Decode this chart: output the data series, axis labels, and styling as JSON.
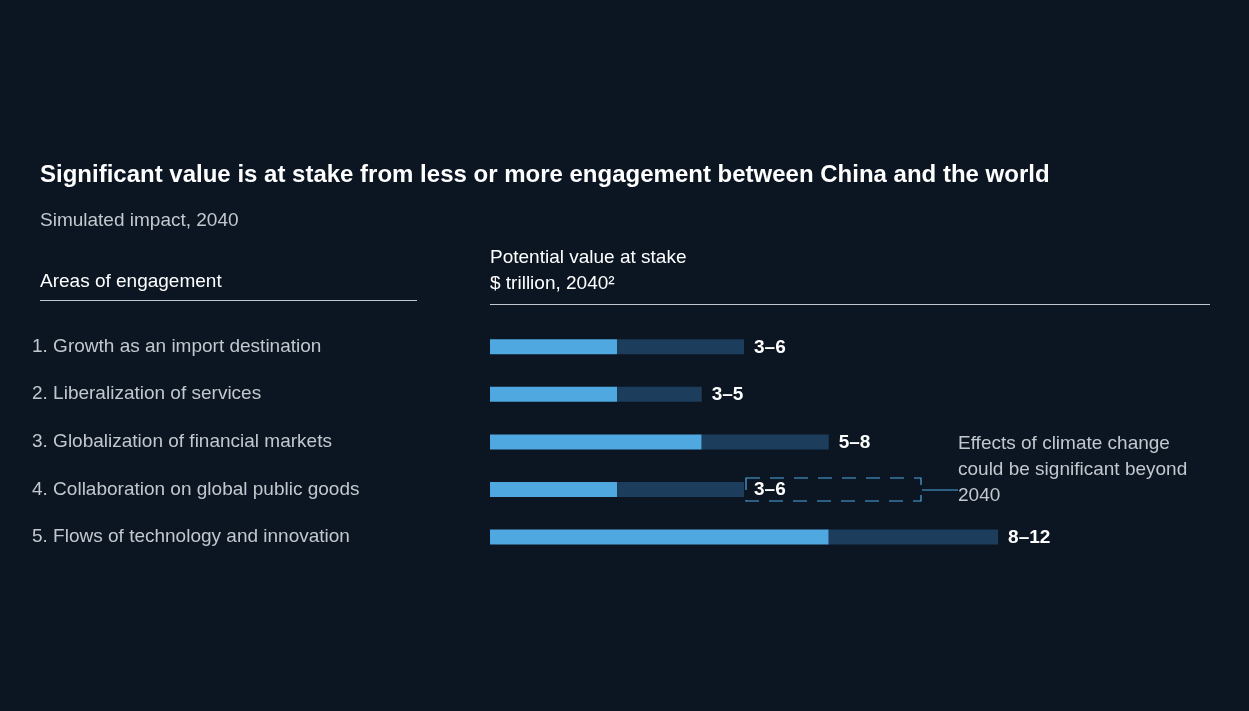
{
  "chart_data": {
    "type": "bar",
    "orientation": "horizontal",
    "stacked": true,
    "title": "Significant value is at stake from less or more engagement between China and the world",
    "subtitle": "Simulated impact, 2040",
    "ylabel": "Areas of engagement",
    "xlabel": "Potential value at stake\n$ trillion, 2040²",
    "categories": [
      "1. Growth as an import destination",
      "2. Liberalization of services",
      "3. Globalization of financial markets",
      "4. Collaboration on global public goods",
      "5. Flows of technology and innovation"
    ],
    "series": [
      {
        "color": "#4fa8e0",
        "values": [
          3,
          3,
          5,
          3,
          8
        ]
      },
      {
        "color": "#1d3d5c",
        "values": [
          3,
          2,
          3,
          3,
          4
        ],
        "value_labels": [
          "3–6",
          "3–5",
          "5–8",
          "3–6",
          "8–12"
        ]
      }
    ],
    "annotations": [
      "Effects of climate change could be significant beyond 2040"
    ]
  }
}
